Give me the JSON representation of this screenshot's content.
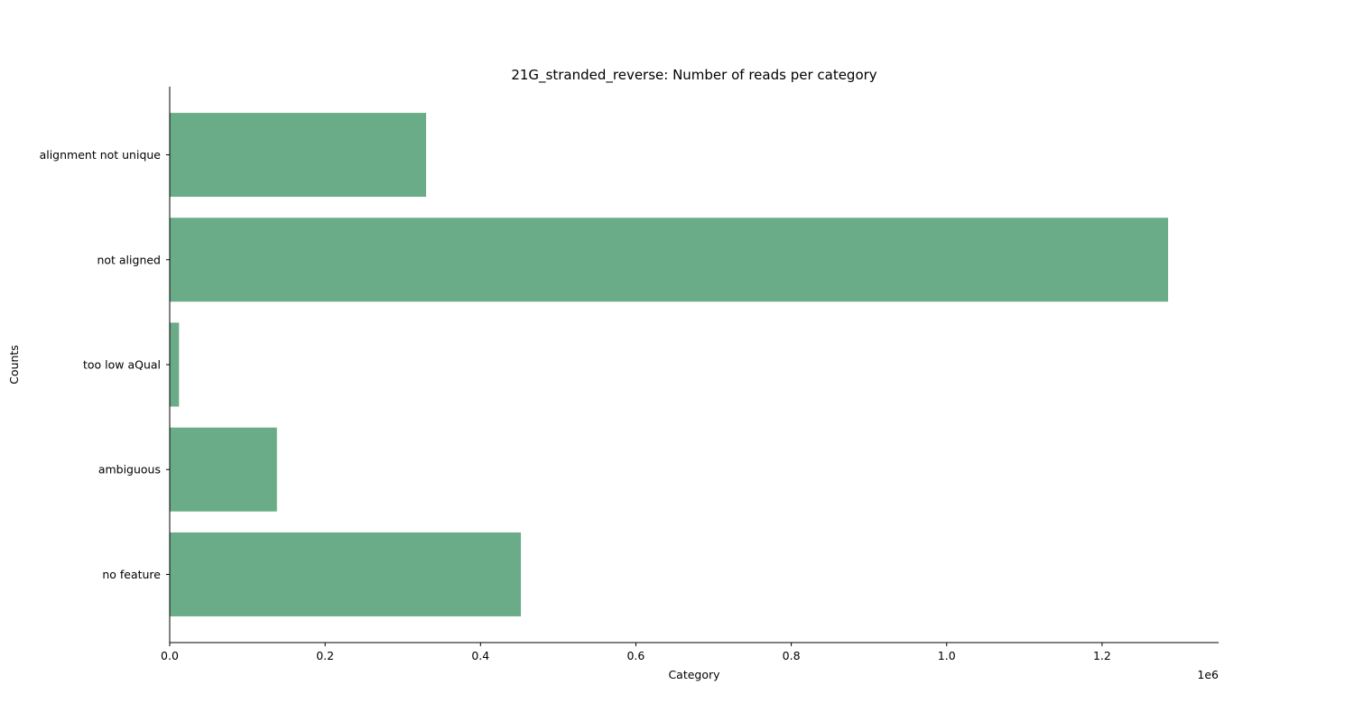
{
  "chart_data": {
    "type": "bar",
    "orientation": "horizontal",
    "title": "21G_stranded_reverse: Number of reads per category",
    "xlabel": "Category",
    "ylabel": "Counts",
    "x_offset_label": "1e6",
    "x_scale_factor": 1000000,
    "xlim": [
      0,
      1350000
    ],
    "x_ticks": [
      0,
      200000,
      400000,
      600000,
      800000,
      1000000,
      1200000
    ],
    "x_tick_labels": [
      "0.0",
      "0.2",
      "0.4",
      "0.6",
      "0.8",
      "1.0",
      "1.2"
    ],
    "categories": [
      "no feature",
      "ambiguous",
      "too low aQual",
      "not aligned",
      "alignment not unique"
    ],
    "values": [
      452000,
      138000,
      12000,
      1285000,
      330000
    ],
    "bar_color": "#6aac87",
    "grid": false,
    "spines": [
      "left",
      "bottom"
    ]
  }
}
